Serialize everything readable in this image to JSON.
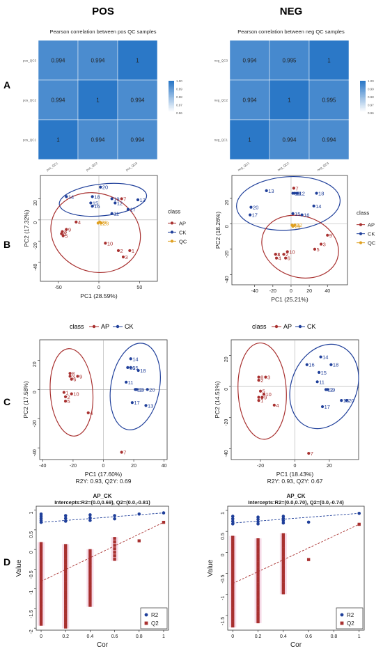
{
  "headers": {
    "left": "POS",
    "right": "NEG"
  },
  "panel_labels": {
    "a": "A",
    "b": "B",
    "c": "C",
    "d": "D"
  },
  "colors": {
    "ap": "#a8302f",
    "ck": "#1f3f9a",
    "qc": "#e0a020",
    "heat_high": "#2b78c7",
    "heat_low": "#ffffff"
  },
  "pls_legend": {
    "title": "class",
    "ap": "AP",
    "ck": "CK"
  },
  "chart_data": [
    {
      "id": "heatmap_pos",
      "type": "heatmap",
      "title": "Pearson correlation between pos QC samples",
      "rows": [
        "pos_QC3",
        "pos_QC2",
        "pos_QC1"
      ],
      "cols": [
        "pos_QC1",
        "pos_QC2",
        "pos_QC3"
      ],
      "values": [
        [
          0.994,
          0.994,
          1
        ],
        [
          0.994,
          1,
          0.994
        ],
        [
          1,
          0.994,
          0.994
        ]
      ],
      "labels": [
        [
          "0.994",
          "0.994",
          "1"
        ],
        [
          "0.994",
          "1",
          "0.994"
        ],
        [
          "1",
          "0.994",
          "0.994"
        ]
      ],
      "colorbar": {
        "range": [
          0.96,
          1.0
        ],
        "ticks": [
          "1.00",
          "0.99",
          "0.98",
          "0.97",
          "0.96"
        ]
      }
    },
    {
      "id": "heatmap_neg",
      "type": "heatmap",
      "title": "Pearson correlation between neg QC samples",
      "rows": [
        "neg_QC3",
        "neg_QC2",
        "neg_QC1"
      ],
      "cols": [
        "neg_QC1",
        "neg_QC2",
        "neg_QC3"
      ],
      "values": [
        [
          0.994,
          0.995,
          1
        ],
        [
          0.994,
          1,
          0.995
        ],
        [
          1,
          0.994,
          0.994
        ]
      ],
      "labels": [
        [
          "0.994",
          "0.995",
          "1"
        ],
        [
          "0.994",
          "1",
          "0.995"
        ],
        [
          "1",
          "0.994",
          "0.994"
        ]
      ],
      "colorbar": {
        "range": [
          0.96,
          1.0
        ],
        "ticks": [
          "1.00",
          "0.99",
          "0.98",
          "0.97",
          "0.96"
        ]
      }
    },
    {
      "id": "pca_pos",
      "type": "scatter",
      "xlabel": "PC1 (28.59%)",
      "ylabel": "PC2 (17.32%)",
      "xlim": [
        -72,
        72
      ],
      "ylim": [
        -58,
        42
      ],
      "xticks": [
        -50,
        0,
        50
      ],
      "yticks": [
        -40,
        -20,
        0,
        20
      ],
      "legend": {
        "title": "class",
        "items": [
          "AP",
          "CK",
          "QC"
        ]
      },
      "series": [
        {
          "name": "AP",
          "points": [
            {
              "label": "1",
              "x": 38,
              "y": -29
            },
            {
              "label": "2",
              "x": 24,
              "y": -29
            },
            {
              "label": "3",
              "x": 30,
              "y": -35
            },
            {
              "label": "4",
              "x": -28,
              "y": -2
            },
            {
              "label": "5",
              "x": -44,
              "y": -15
            },
            {
              "label": "6",
              "x": -46,
              "y": -13
            },
            {
              "label": "7",
              "x": 28,
              "y": 20
            },
            {
              "label": "8",
              "x": -45,
              "y": -11
            },
            {
              "label": "9",
              "x": -40,
              "y": -9
            },
            {
              "label": "10",
              "x": 8,
              "y": -22
            }
          ]
        },
        {
          "name": "CK",
          "points": [
            {
              "label": "11",
              "x": 16,
              "y": 6
            },
            {
              "label": "12",
              "x": 20,
              "y": 16
            },
            {
              "label": "13",
              "x": 48,
              "y": 19
            },
            {
              "label": "14",
              "x": -40,
              "y": 22
            },
            {
              "label": "15",
              "x": -10,
              "y": 16
            },
            {
              "label": "16",
              "x": -8,
              "y": 13
            },
            {
              "label": "17",
              "x": 36,
              "y": 10
            },
            {
              "label": "18",
              "x": -8,
              "y": 22
            },
            {
              "label": "19",
              "x": 16,
              "y": 20
            },
            {
              "label": "20",
              "x": 2,
              "y": 31
            }
          ]
        },
        {
          "name": "QC",
          "points": [
            {
              "label": "21",
              "x": 1,
              "y": -2
            },
            {
              "label": "22",
              "x": -1,
              "y": -3
            },
            {
              "label": "23",
              "x": 3,
              "y": -3
            }
          ]
        }
      ],
      "ellipses": [
        {
          "group": "CK",
          "cx": 5,
          "cy": 19,
          "rx": 54,
          "ry": 15,
          "rot": -6
        },
        {
          "group": "AP",
          "cx": -4,
          "cy": -12,
          "rx": 56,
          "ry": 37,
          "rot": 20
        }
      ]
    },
    {
      "id": "pca_neg",
      "type": "scatter",
      "xlabel": "PC1 (25.21%)",
      "ylabel": "PC2 (18.26%)",
      "xlim": [
        -65,
        62
      ],
      "ylim": [
        -48,
        38
      ],
      "xticks": [
        -40,
        -20,
        0,
        20,
        40
      ],
      "yticks": [
        -40,
        -20,
        0,
        20
      ],
      "legend": {
        "title": "class",
        "items": [
          "AP",
          "CK",
          "QC"
        ]
      },
      "series": [
        {
          "name": "AP",
          "points": [
            {
              "label": "1",
              "x": -17,
              "y": -24
            },
            {
              "label": "2",
              "x": -8,
              "y": -24
            },
            {
              "label": "3",
              "x": 33,
              "y": -16
            },
            {
              "label": "4",
              "x": -16,
              "y": -27
            },
            {
              "label": "5",
              "x": 26,
              "y": -20
            },
            {
              "label": "6",
              "x": -6,
              "y": -27
            },
            {
              "label": "7",
              "x": 3,
              "y": 28
            },
            {
              "label": "8",
              "x": -17,
              "y": -24
            },
            {
              "label": "9",
              "x": 40,
              "y": -9
            },
            {
              "label": "10",
              "x": -4,
              "y": -22
            }
          ]
        },
        {
          "name": "CK",
          "points": [
            {
              "label": "11",
              "x": 4,
              "y": 24
            },
            {
              "label": "12",
              "x": 7,
              "y": 24
            },
            {
              "label": "13",
              "x": -27,
              "y": 26
            },
            {
              "label": "14",
              "x": 25,
              "y": 14
            },
            {
              "label": "15",
              "x": 2,
              "y": 8
            },
            {
              "label": "16",
              "x": 12,
              "y": 7
            },
            {
              "label": "17",
              "x": -45,
              "y": 7
            },
            {
              "label": "18",
              "x": 28,
              "y": 24
            },
            {
              "label": "19",
              "x": 2,
              "y": 24
            },
            {
              "label": "20",
              "x": -44,
              "y": 13
            }
          ]
        },
        {
          "name": "QC",
          "points": [
            {
              "label": "21",
              "x": 1,
              "y": -1
            },
            {
              "label": "22",
              "x": 4,
              "y": -1
            },
            {
              "label": "23",
              "x": 2,
              "y": -2
            }
          ]
        }
      ],
      "ellipses": [
        {
          "group": "CK",
          "cx": -3,
          "cy": 16,
          "rx": 57,
          "ry": 21,
          "rot": -4
        },
        {
          "group": "AP",
          "cx": 10,
          "cy": -18,
          "rx": 43,
          "ry": 24,
          "rot": 18
        }
      ]
    },
    {
      "id": "pls_pos",
      "type": "scatter",
      "xlabel": "PC1 (17.60%)",
      "ylabel": "PC2 (17.58%)",
      "caption": "R2Y: 0.93, Q2Y: 0.69",
      "xlim": [
        -42,
        42
      ],
      "ylim": [
        -48,
        34
      ],
      "xticks": [
        -40,
        -20,
        0,
        20,
        40
      ],
      "yticks": [
        -40,
        -20,
        0,
        20
      ],
      "series": [
        {
          "name": "AP",
          "points": [
            {
              "label": "1",
              "x": -26,
              "y": -2
            },
            {
              "label": "2",
              "x": -25,
              "y": -5
            },
            {
              "label": "3",
              "x": -22,
              "y": 9
            },
            {
              "label": "4",
              "x": -10,
              "y": -16
            },
            {
              "label": "5",
              "x": -25,
              "y": -8
            },
            {
              "label": "6",
              "x": -21,
              "y": 7
            },
            {
              "label": "7",
              "x": 12,
              "y": -43
            },
            {
              "label": "8",
              "x": -22,
              "y": 11
            },
            {
              "label": "9",
              "x": -17,
              "y": 9
            },
            {
              "label": "10",
              "x": -21,
              "y": -3
            }
          ]
        },
        {
          "name": "CK",
          "points": [
            {
              "label": "11",
              "x": 15,
              "y": 5
            },
            {
              "label": "12",
              "x": 21,
              "y": 0
            },
            {
              "label": "13",
              "x": 28,
              "y": -11
            },
            {
              "label": "14",
              "x": 18,
              "y": 21
            },
            {
              "label": "15",
              "x": 18,
              "y": 15
            },
            {
              "label": "16",
              "x": 16,
              "y": 15
            },
            {
              "label": "17",
              "x": 19,
              "y": -9
            },
            {
              "label": "18",
              "x": 23,
              "y": 13
            },
            {
              "label": "19",
              "x": 22,
              "y": 0
            },
            {
              "label": "20",
              "x": 29,
              "y": 0
            }
          ]
        }
      ],
      "ellipses": [
        {
          "group": "AP",
          "cx": -21,
          "cy": -2,
          "rx": 14,
          "ry": 30,
          "rot": -4
        },
        {
          "group": "CK",
          "cx": 21,
          "cy": 2,
          "rx": 16,
          "ry": 30,
          "rot": 10
        }
      ]
    },
    {
      "id": "pls_neg",
      "type": "scatter",
      "xlabel": "PC1 (18.43%)",
      "ylabel": "PC2 (14.51%)",
      "caption": "R2Y: 0.93, Q2Y: 0.67",
      "xlim": [
        -37,
        37
      ],
      "ylim": [
        -47,
        30
      ],
      "xticks": [
        -20,
        0,
        20
      ],
      "yticks": [
        -40,
        -20,
        0,
        20
      ],
      "series": [
        {
          "name": "AP",
          "points": [
            {
              "label": "1",
              "x": -21,
              "y": -9
            },
            {
              "label": "2",
              "x": -21,
              "y": 4
            },
            {
              "label": "3",
              "x": -17,
              "y": 6
            },
            {
              "label": "4",
              "x": -12,
              "y": -12
            },
            {
              "label": "5",
              "x": -20,
              "y": -3
            },
            {
              "label": "6",
              "x": -21,
              "y": -7
            },
            {
              "label": "7",
              "x": 8,
              "y": -43
            },
            {
              "label": "8",
              "x": -21,
              "y": 6
            },
            {
              "label": "9",
              "x": -19,
              "y": -7
            },
            {
              "label": "10",
              "x": -18,
              "y": -5
            }
          ]
        },
        {
          "name": "CK",
          "points": [
            {
              "label": "11",
              "x": 13,
              "y": 3
            },
            {
              "label": "12",
              "x": 18,
              "y": -2
            },
            {
              "label": "13",
              "x": 27,
              "y": -9
            },
            {
              "label": "14",
              "x": 15,
              "y": 19
            },
            {
              "label": "15",
              "x": 14,
              "y": 9
            },
            {
              "label": "16",
              "x": 7,
              "y": 14
            },
            {
              "label": "17",
              "x": 16,
              "y": -13
            },
            {
              "label": "18",
              "x": 21,
              "y": 14
            },
            {
              "label": "19",
              "x": 19,
              "y": -2
            },
            {
              "label": "20",
              "x": 30,
              "y": -9
            }
          ]
        }
      ],
      "ellipses": [
        {
          "group": "AP",
          "cx": -19,
          "cy": -3,
          "rx": 14,
          "ry": 31,
          "rot": -3
        },
        {
          "group": "CK",
          "cx": 17,
          "cy": 0,
          "rx": 19,
          "ry": 28,
          "rot": 22
        }
      ]
    },
    {
      "id": "perm_pos",
      "type": "scatter",
      "title": "AP_CK",
      "subtitle": "Intercepts:R2=(0.0,0.69), Q2=(0.0,-0.81)",
      "xlabel": "Cor",
      "ylabel": "Value",
      "xlim": [
        -0.04,
        1.04
      ],
      "ylim": [
        -2.05,
        1.1
      ],
      "xticks": [
        0,
        0.2,
        0.4,
        0.6,
        0.8,
        1.0
      ],
      "yticks": [
        -2,
        -1.5,
        -1,
        -0.5,
        0,
        0.5,
        1
      ],
      "legend": {
        "items": [
          "R2",
          "Q2"
        ]
      },
      "r2_groups": [
        {
          "x": 0.0,
          "min": 0.69,
          "max": 0.9
        },
        {
          "x": 0.2,
          "min": 0.72,
          "max": 0.86
        },
        {
          "x": 0.4,
          "min": 0.74,
          "max": 0.88
        },
        {
          "x": 0.6,
          "min": 0.78,
          "max": 0.86
        },
        {
          "x": 0.8,
          "min": 0.9,
          "max": 0.9
        },
        {
          "x": 1.0,
          "min": 0.93,
          "max": 0.93
        }
      ],
      "q2_groups": [
        {
          "x": 0.0,
          "min": -1.9,
          "max": 0.15
        },
        {
          "x": 0.2,
          "min": -1.97,
          "max": 0.1
        },
        {
          "x": 0.4,
          "min": -1.42,
          "max": -0.03
        },
        {
          "x": 0.6,
          "min": -0.25,
          "max": 0.28
        },
        {
          "x": 0.8,
          "min": 0.22,
          "max": 0.22
        },
        {
          "x": 1.0,
          "min": 0.69,
          "max": 0.69
        }
      ],
      "r2_line": [
        [
          0,
          0.69
        ],
        [
          1,
          0.93
        ]
      ],
      "q2_line": [
        [
          0,
          -0.81
        ],
        [
          1,
          0.69
        ]
      ]
    },
    {
      "id": "perm_neg",
      "type": "scatter",
      "title": "AP_CK",
      "subtitle": "Intercepts:R2=(0.0,0.70), Q2=(0.0,-0.74)",
      "xlabel": "Cor",
      "ylabel": "Value",
      "xlim": [
        -0.04,
        1.04
      ],
      "ylim": [
        -1.85,
        1.1
      ],
      "xticks": [
        0,
        0.2,
        0.4,
        0.6,
        0.8,
        1.0
      ],
      "yticks": [
        -1.5,
        -1,
        -0.5,
        0,
        0.5,
        1
      ],
      "legend": {
        "items": [
          "R2",
          "Q2"
        ]
      },
      "r2_groups": [
        {
          "x": 0.0,
          "min": 0.68,
          "max": 0.86
        },
        {
          "x": 0.2,
          "min": 0.68,
          "max": 0.84
        },
        {
          "x": 0.4,
          "min": 0.7,
          "max": 0.86
        },
        {
          "x": 0.6,
          "min": 0.72,
          "max": 0.72
        },
        {
          "x": 1.0,
          "min": 0.93,
          "max": 0.93
        }
      ],
      "q2_groups": [
        {
          "x": 0.0,
          "min": -1.75,
          "max": 0.36
        },
        {
          "x": 0.2,
          "min": -1.65,
          "max": 0.3
        },
        {
          "x": 0.4,
          "min": -0.96,
          "max": 0.42
        },
        {
          "x": 0.6,
          "min": -0.17,
          "max": -0.17
        },
        {
          "x": 1.0,
          "min": 0.67,
          "max": 0.67
        }
      ],
      "r2_line": [
        [
          0,
          0.7
        ],
        [
          1,
          0.93
        ]
      ],
      "q2_line": [
        [
          0,
          -0.74
        ],
        [
          1,
          0.67
        ]
      ]
    }
  ]
}
